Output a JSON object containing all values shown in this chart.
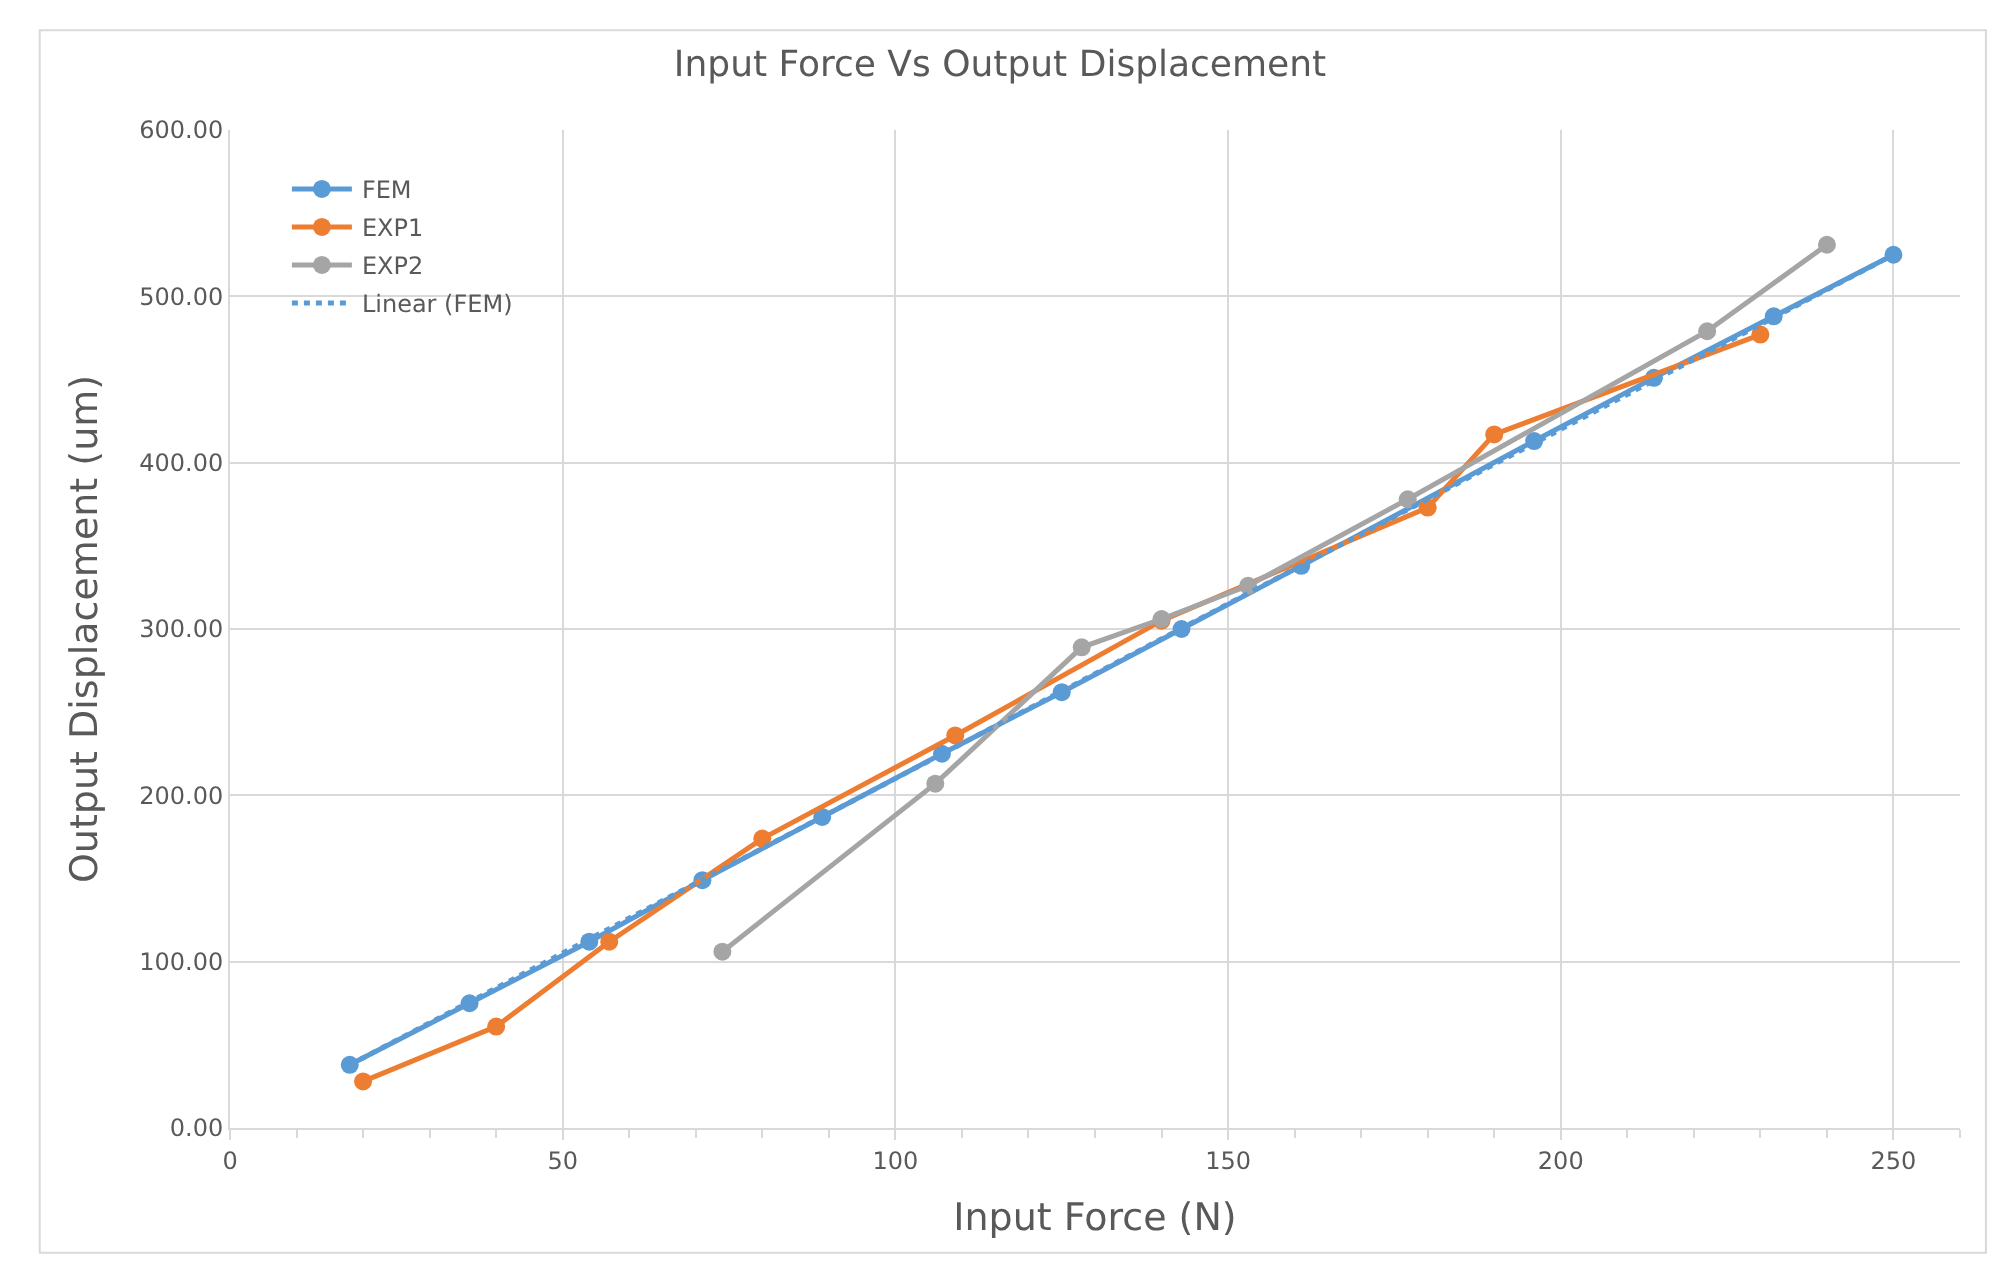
{
  "chart_data": {
    "type": "line",
    "title": "Input Force Vs Output Displacement",
    "xlabel": "Input Force (N)",
    "ylabel": "Output Displacement (um)",
    "xlim": [
      0,
      260
    ],
    "xticks": [
      0,
      50,
      100,
      150,
      200,
      250
    ],
    "ylim": [
      0,
      600
    ],
    "yticks": [
      {
        "value": 0,
        "label": "0.00"
      },
      {
        "value": 100,
        "label": "100.00"
      },
      {
        "value": 200,
        "label": "200.00"
      },
      {
        "value": 300,
        "label": "300.00"
      },
      {
        "value": 400,
        "label": "400.00"
      },
      {
        "value": 500,
        "label": "500.00"
      },
      {
        "value": 600,
        "label": "600.00"
      }
    ],
    "grid": true,
    "legend": "top left",
    "marker": "circle",
    "series": [
      {
        "name": "FEM",
        "color": "#5b9bd5",
        "x": [
          18,
          36,
          54,
          71,
          89,
          107,
          125,
          143,
          161,
          196,
          214,
          232,
          250
        ],
        "values": [
          38,
          75,
          112,
          149,
          187,
          225,
          262,
          300,
          338,
          413,
          451,
          488,
          525
        ]
      },
      {
        "name": "EXP1",
        "color": "#ed7d31",
        "x": [
          20,
          40,
          57,
          80,
          109,
          140,
          180,
          190,
          230
        ],
        "values": [
          28,
          61,
          112,
          174,
          236,
          305,
          373,
          417,
          477
        ]
      },
      {
        "name": "EXP2",
        "color": "#a5a5a5",
        "x": [
          74,
          106,
          128,
          140,
          153,
          177,
          222,
          240
        ],
        "values": [
          106,
          207,
          289,
          306,
          326,
          378,
          479,
          531
        ]
      },
      {
        "name": "Linear (FEM)",
        "color": "#5b9bd5",
        "line_style": "dotted",
        "marker": "none",
        "x": [
          18,
          250
        ],
        "values": [
          38,
          525
        ]
      }
    ]
  }
}
